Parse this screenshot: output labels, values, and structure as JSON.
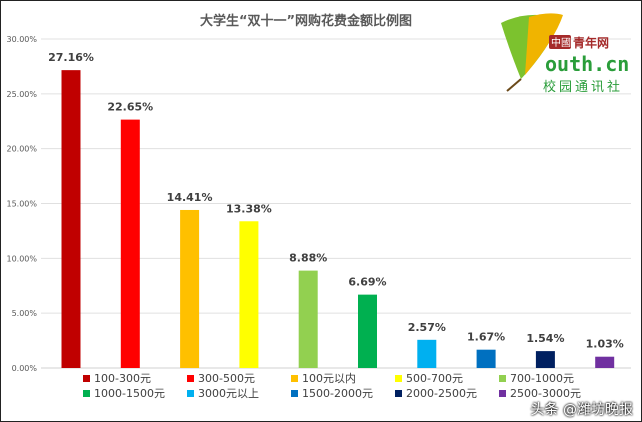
{
  "chart_data": {
    "type": "bar",
    "title": "大学生“双十一”网购花费金额比例图",
    "categories": [
      "100-300元",
      "300-500元",
      "100元以内",
      "500-700元",
      "700-1000元",
      "1000-1500元",
      "3000元以上",
      "1500-2000元",
      "2000-2500元",
      "2500-3000元"
    ],
    "values": [
      27.16,
      22.65,
      14.41,
      13.38,
      8.88,
      6.69,
      2.57,
      1.67,
      1.54,
      1.03
    ],
    "data_labels": [
      "27.16%",
      "22.65%",
      "14.41%",
      "13.38%",
      "8.88%",
      "6.69%",
      "2.57%",
      "1.67%",
      "1.54%",
      "1.03%"
    ],
    "colors": [
      "#C00000",
      "#FF0000",
      "#FFC000",
      "#FFFF00",
      "#92D050",
      "#00B050",
      "#00B0F0",
      "#0070C0",
      "#002060",
      "#7030A0"
    ],
    "ylim": [
      0,
      30
    ],
    "yticks": [
      "0.00%",
      "5.00%",
      "10.00%",
      "15.00%",
      "20.00%",
      "25.00%",
      "30.00%"
    ],
    "grid": true,
    "legend_placement": "bottom",
    "xlabel": "",
    "ylabel": ""
  },
  "logo": {
    "line1": "中國青年网",
    "line2": "outh.cn",
    "line3": "校园通讯社"
  },
  "watermark": "头条 @潍坊晚报"
}
